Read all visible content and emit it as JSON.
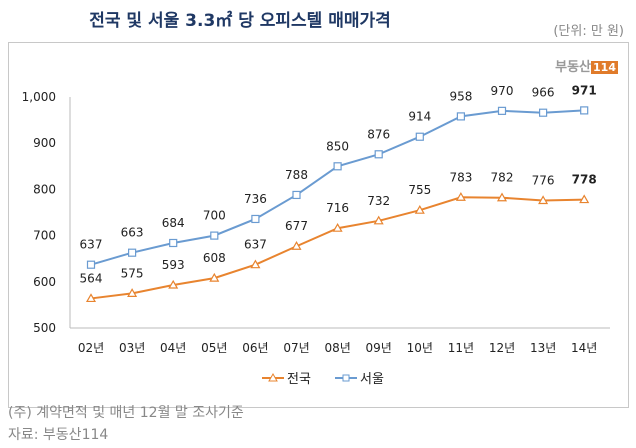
{
  "title": "전국 및 서울 3.3㎡ 당 오피스텔 매매가격",
  "unit": "(단위: 만 원)",
  "logo": {
    "text": "부동산",
    "number": "114"
  },
  "notes": [
    "(주) 계약면적 및 매년 12월 말 조사기준",
    "자료: 부동산114"
  ],
  "chart_data": {
    "type": "line",
    "categories": [
      "02년",
      "03년",
      "04년",
      "05년",
      "06년",
      "07년",
      "08년",
      "09년",
      "10년",
      "11년",
      "12년",
      "13년",
      "14년"
    ],
    "series": [
      {
        "name": "전국",
        "color": "#e8842f",
        "marker": "triangle",
        "values": [
          564,
          575,
          593,
          608,
          637,
          677,
          716,
          732,
          755,
          783,
          782,
          776,
          778
        ]
      },
      {
        "name": "서울",
        "color": "#6a9bd1",
        "marker": "square",
        "values": [
          637,
          663,
          684,
          700,
          736,
          788,
          850,
          876,
          914,
          958,
          970,
          966,
          971
        ]
      }
    ],
    "ylim": [
      500,
      1000
    ],
    "yticks": [
      500,
      600,
      700,
      800,
      900,
      1000
    ],
    "ytick_labels": [
      "500",
      "600",
      "700",
      "800",
      "900",
      "1,000"
    ],
    "grid": false,
    "legend": "bottom",
    "last_label_bold": true
  }
}
